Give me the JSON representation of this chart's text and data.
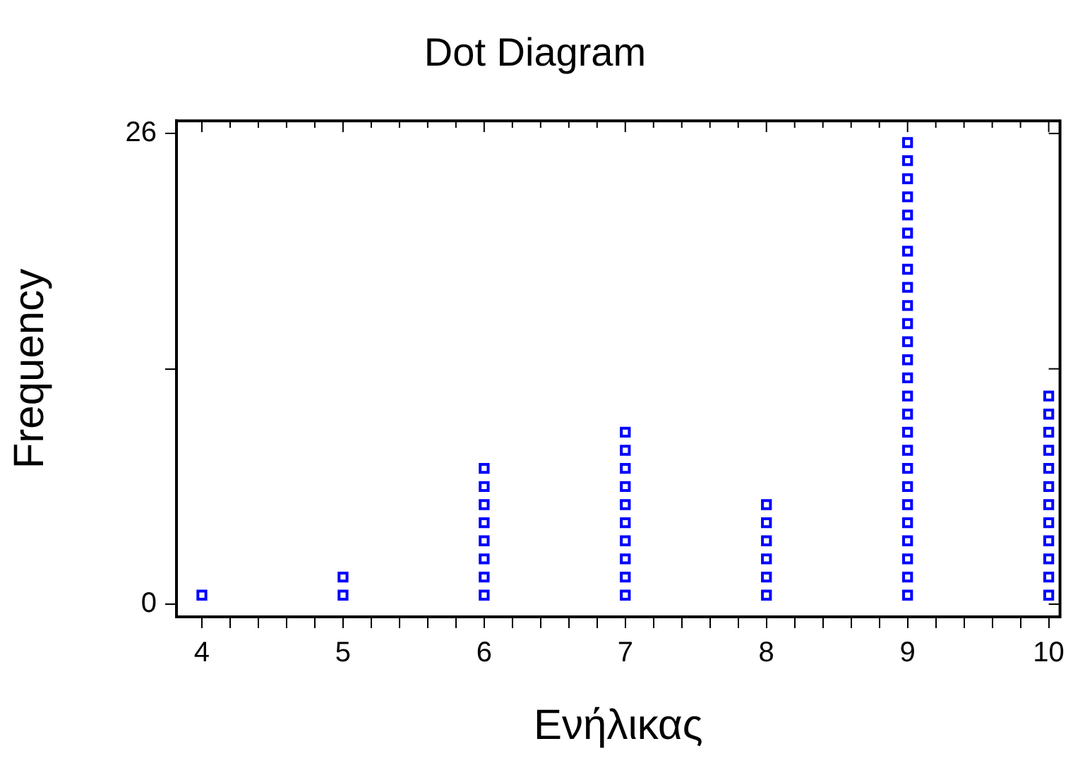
{
  "chart_data": {
    "type": "scatter",
    "title": "Dot Diagram",
    "xlabel": "Ενήλικας",
    "ylabel": "Frequency",
    "x": [
      4,
      5,
      5,
      6,
      6,
      6,
      6,
      6,
      6,
      6,
      6,
      7,
      7,
      7,
      7,
      7,
      7,
      7,
      7,
      7,
      7,
      8,
      8,
      8,
      8,
      8,
      8,
      9,
      9,
      9,
      9,
      9,
      9,
      9,
      9,
      9,
      9,
      9,
      9,
      9,
      9,
      9,
      9,
      9,
      9,
      9,
      9,
      9,
      9,
      9,
      9,
      9,
      9,
      10,
      10,
      10,
      10,
      10,
      10,
      10,
      10,
      10,
      10,
      10,
      10
    ],
    "values": [
      0.5,
      0.5,
      1.5,
      0.5,
      1.5,
      2.5,
      3.5,
      4.5,
      5.5,
      6.5,
      7.5,
      0.5,
      1.5,
      2.5,
      3.5,
      4.5,
      5.5,
      6.5,
      7.5,
      8.5,
      9.5,
      0.5,
      1.5,
      2.5,
      3.5,
      4.5,
      5.5,
      0.5,
      1.5,
      2.5,
      3.5,
      4.5,
      5.5,
      6.5,
      7.5,
      8.5,
      9.5,
      10.5,
      11.5,
      12.5,
      13.5,
      14.5,
      15.5,
      16.5,
      17.5,
      18.5,
      19.5,
      20.5,
      21.5,
      22.5,
      23.5,
      24.5,
      25.5,
      0.5,
      1.5,
      2.5,
      3.5,
      4.5,
      5.5,
      6.5,
      7.5,
      8.5,
      9.5,
      10.5,
      11.5
    ],
    "color": "#0000ff",
    "marker": "square",
    "grid": false,
    "legend": false,
    "xlim": [
      3.82,
      10.08
    ],
    "xticks": [
      4,
      {
        "value": 4.2,
        "label": null
      },
      {
        "value": 4.4,
        "label": null
      },
      {
        "value": 4.6,
        "label": null
      },
      {
        "value": 4.8,
        "label": null
      },
      5,
      {
        "value": 5.2,
        "label": null
      },
      {
        "value": 5.4,
        "label": null
      },
      {
        "value": 5.6,
        "label": null
      },
      {
        "value": 5.8,
        "label": null
      },
      6,
      {
        "value": 6.2,
        "label": null
      },
      {
        "value": 6.4,
        "label": null
      },
      {
        "value": 6.6,
        "label": null
      },
      {
        "value": 6.8,
        "label": null
      },
      7,
      {
        "value": 7.2,
        "label": null
      },
      {
        "value": 7.4,
        "label": null
      },
      {
        "value": 7.6,
        "label": null
      },
      {
        "value": 7.8,
        "label": null
      },
      8,
      {
        "value": 8.2,
        "label": null
      },
      {
        "value": 8.4,
        "label": null
      },
      {
        "value": 8.6,
        "label": null
      },
      {
        "value": 8.8,
        "label": null
      },
      9,
      {
        "value": 9.2,
        "label": null
      },
      {
        "value": 9.4,
        "label": null
      },
      {
        "value": 9.6,
        "label": null
      },
      {
        "value": 9.8,
        "label": null
      },
      10
    ],
    "ylim": [
      -0.7,
      26.7
    ],
    "yticks": [
      0,
      {
        "value": 13,
        "label": null
      },
      26
    ]
  }
}
